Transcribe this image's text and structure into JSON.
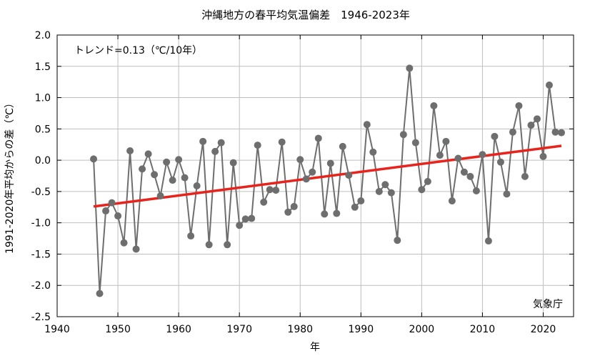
{
  "chart_data": {
    "type": "line",
    "title": "沖縄地方の春平均気温偏差　1946-2023年",
    "xlabel": "年",
    "ylabel": "1991-2020年平均からの差（℃）",
    "xlim": [
      1940,
      2025
    ],
    "ylim": [
      -2.5,
      2.0
    ],
    "xticks": [
      1940,
      1950,
      1960,
      1970,
      1980,
      1990,
      2000,
      2010,
      2020
    ],
    "yticks": [
      -2.5,
      -2.0,
      -1.5,
      -1.0,
      -0.5,
      0.0,
      0.5,
      1.0,
      1.5,
      2.0
    ],
    "ytick_labels": [
      "-2.5",
      "-2.0",
      "-1.5",
      "-1.0",
      "-0.5",
      "0.0",
      "0.5",
      "1.0",
      "1.5",
      "2.0"
    ],
    "xtick_labels": [
      "1940",
      "1950",
      "1960",
      "1970",
      "1980",
      "1990",
      "2000",
      "2010",
      "2020"
    ],
    "grid": true,
    "series": [
      {
        "color": "#6e6e6e",
        "x": [
          1946,
          1947,
          1948,
          1949,
          1950,
          1951,
          1952,
          1953,
          1954,
          1955,
          1956,
          1957,
          1958,
          1959,
          1960,
          1961,
          1962,
          1963,
          1964,
          1965,
          1966,
          1967,
          1968,
          1969,
          1970,
          1971,
          1972,
          1973,
          1974,
          1975,
          1976,
          1977,
          1978,
          1979,
          1980,
          1981,
          1982,
          1983,
          1984,
          1985,
          1986,
          1987,
          1988,
          1989,
          1990,
          1991,
          1992,
          1993,
          1994,
          1995,
          1996,
          1997,
          1998,
          1999,
          2000,
          2001,
          2002,
          2003,
          2004,
          2005,
          2006,
          2007,
          2008,
          2009,
          2010,
          2011,
          2012,
          2013,
          2014,
          2015,
          2016,
          2017,
          2018,
          2019,
          2020,
          2021,
          2022,
          2023
        ],
        "values": [
          0.02,
          -2.13,
          -0.81,
          -0.68,
          -0.89,
          -1.32,
          0.15,
          -1.42,
          -0.14,
          0.1,
          -0.23,
          -0.57,
          -0.03,
          -0.32,
          0.01,
          -0.28,
          -1.21,
          -0.41,
          0.3,
          -1.35,
          0.14,
          0.28,
          -1.35,
          -0.04,
          -1.04,
          -0.94,
          -0.93,
          0.24,
          -0.67,
          -0.47,
          -0.48,
          0.29,
          -0.83,
          -0.74,
          0.01,
          -0.3,
          -0.19,
          0.35,
          -0.86,
          -0.05,
          -0.85,
          0.22,
          -0.24,
          -0.75,
          -0.65,
          0.57,
          0.13,
          -0.5,
          -0.39,
          -0.52,
          -1.28,
          0.41,
          1.47,
          0.28,
          -0.47,
          -0.34,
          0.87,
          0.08,
          0.3,
          -0.65,
          0.03,
          -0.19,
          -0.26,
          -0.49,
          0.09,
          -1.29,
          0.38,
          -0.03,
          -0.54,
          0.45,
          0.87,
          -0.26,
          0.56,
          0.66,
          0.06,
          1.2,
          0.45,
          0.44
        ]
      },
      {
        "type": "trend",
        "color": "#e8231c",
        "x": [
          1946,
          2023
        ],
        "values": [
          -0.74,
          0.23
        ]
      }
    ],
    "annotations": {
      "trend": "トレンド=0.13（℃/10年）",
      "source": "気象庁"
    }
  }
}
